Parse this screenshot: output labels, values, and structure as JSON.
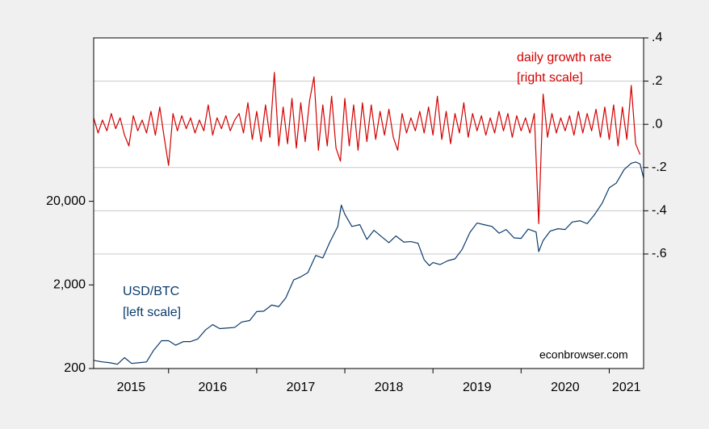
{
  "chart_data": {
    "type": "line",
    "annotations": [
      "[left scale]",
      "[right scale]",
      "econbrowser.com"
    ],
    "xlim": [
      2015.15,
      2021.39
    ],
    "xticks": [
      2015,
      2016,
      2017,
      2018,
      2019,
      2020,
      2021
    ],
    "ylog": true,
    "ylim": [
      200,
      1800000
    ],
    "yticks": [
      200,
      {
        "value": 2000,
        "label": "2,000"
      },
      {
        "value": 20000,
        "label": "20,000"
      }
    ],
    "y2lim": [
      -1.13,
      0.4
    ],
    "y2ticks": [
      {
        "value": 0.4,
        "label": ".4"
      },
      {
        "value": 0.2,
        "label": ".2"
      },
      {
        "value": 0,
        "label": ".0"
      },
      {
        "value": -0.2,
        "label": "-.2"
      },
      {
        "value": -0.4,
        "label": "-.4"
      },
      {
        "value": -0.6,
        "label": "-.6"
      }
    ],
    "grid": true,
    "series": [
      {
        "name": "USD/BTC",
        "color": "#0b3b6b",
        "axis": "y",
        "x": [
          2015.15,
          2015.25,
          2015.33,
          2015.42,
          2015.5,
          2015.58,
          2015.67,
          2015.75,
          2015.83,
          2015.92,
          2016.0,
          2016.08,
          2016.17,
          2016.25,
          2016.33,
          2016.42,
          2016.5,
          2016.58,
          2016.67,
          2016.75,
          2016.83,
          2016.92,
          2017.0,
          2017.08,
          2017.17,
          2017.25,
          2017.33,
          2017.42,
          2017.5,
          2017.58,
          2017.67,
          2017.75,
          2017.83,
          2017.92,
          2017.96,
          2018.0,
          2018.08,
          2018.17,
          2018.25,
          2018.33,
          2018.42,
          2018.5,
          2018.58,
          2018.67,
          2018.75,
          2018.83,
          2018.9,
          2018.96,
          2019.0,
          2019.08,
          2019.17,
          2019.25,
          2019.33,
          2019.42,
          2019.5,
          2019.58,
          2019.67,
          2019.75,
          2019.83,
          2019.92,
          2020.0,
          2020.08,
          2020.17,
          2020.2,
          2020.25,
          2020.33,
          2020.42,
          2020.5,
          2020.58,
          2020.67,
          2020.75,
          2020.83,
          2020.92,
          2021.0,
          2021.08,
          2021.17,
          2021.25,
          2021.3,
          2021.35,
          2021.39
        ],
        "values": [
          250,
          240,
          235,
          225,
          270,
          230,
          235,
          240,
          330,
          430,
          430,
          380,
          420,
          420,
          450,
          580,
          670,
          600,
          610,
          620,
          720,
          750,
          960,
          970,
          1150,
          1100,
          1400,
          2300,
          2500,
          2800,
          4500,
          4200,
          6500,
          10000,
          18000,
          14000,
          10000,
          10500,
          7000,
          9000,
          7500,
          6400,
          7700,
          6500,
          6600,
          6300,
          4000,
          3400,
          3700,
          3500,
          3900,
          4100,
          5300,
          8500,
          11000,
          10500,
          10000,
          8300,
          9200,
          7300,
          7200,
          9300,
          8600,
          5000,
          6800,
          8800,
          9400,
          9200,
          11300,
          11700,
          10800,
          13700,
          19000,
          29000,
          33000,
          48000,
          57000,
          59000,
          56000,
          38000
        ]
      },
      {
        "name": "daily growth rate",
        "color": "#d40000",
        "axis": "y2",
        "x": [
          2015.15,
          2015.2,
          2015.25,
          2015.3,
          2015.35,
          2015.4,
          2015.45,
          2015.5,
          2015.55,
          2015.6,
          2015.65,
          2015.7,
          2015.75,
          2015.8,
          2015.85,
          2015.9,
          2015.95,
          2016.0,
          2016.05,
          2016.1,
          2016.15,
          2016.2,
          2016.25,
          2016.3,
          2016.35,
          2016.4,
          2016.45,
          2016.5,
          2016.55,
          2016.6,
          2016.65,
          2016.7,
          2016.75,
          2016.8,
          2016.85,
          2016.9,
          2016.95,
          2017.0,
          2017.05,
          2017.1,
          2017.15,
          2017.2,
          2017.25,
          2017.3,
          2017.35,
          2017.4,
          2017.45,
          2017.5,
          2017.55,
          2017.6,
          2017.65,
          2017.7,
          2017.75,
          2017.8,
          2017.85,
          2017.9,
          2017.95,
          2018.0,
          2018.05,
          2018.1,
          2018.15,
          2018.2,
          2018.25,
          2018.3,
          2018.35,
          2018.4,
          2018.45,
          2018.5,
          2018.55,
          2018.6,
          2018.65,
          2018.7,
          2018.75,
          2018.8,
          2018.85,
          2018.9,
          2018.95,
          2019.0,
          2019.05,
          2019.1,
          2019.15,
          2019.2,
          2019.25,
          2019.3,
          2019.35,
          2019.4,
          2019.45,
          2019.5,
          2019.55,
          2019.6,
          2019.65,
          2019.7,
          2019.75,
          2019.8,
          2019.85,
          2019.9,
          2019.95,
          2020.0,
          2020.05,
          2020.1,
          2020.15,
          2020.2,
          2020.25,
          2020.3,
          2020.35,
          2020.4,
          2020.45,
          2020.5,
          2020.55,
          2020.6,
          2020.65,
          2020.7,
          2020.75,
          2020.8,
          2020.85,
          2020.9,
          2020.95,
          2021.0,
          2021.05,
          2021.1,
          2021.15,
          2021.2,
          2021.25,
          2021.3,
          2021.35
        ],
        "values": [
          0.03,
          -0.04,
          0.02,
          -0.03,
          0.05,
          -0.02,
          0.03,
          -0.05,
          -0.1,
          0.04,
          -0.03,
          0.02,
          -0.04,
          0.06,
          -0.05,
          0.08,
          -0.06,
          -0.19,
          0.05,
          -0.03,
          0.04,
          -0.02,
          0.03,
          -0.04,
          0.02,
          -0.03,
          0.09,
          -0.05,
          0.03,
          -0.02,
          0.04,
          -0.03,
          0.02,
          0.05,
          -0.04,
          0.1,
          -0.07,
          0.06,
          -0.08,
          0.09,
          -0.06,
          0.24,
          -0.1,
          0.08,
          -0.09,
          0.12,
          -0.11,
          0.1,
          -0.08,
          0.11,
          0.22,
          -0.12,
          0.09,
          -0.1,
          0.13,
          -0.11,
          -0.17,
          0.12,
          -0.1,
          0.09,
          -0.12,
          0.1,
          -0.08,
          0.09,
          -0.07,
          0.06,
          -0.05,
          0.07,
          -0.06,
          -0.12,
          0.05,
          -0.04,
          0.03,
          -0.03,
          0.06,
          -0.04,
          0.08,
          -0.05,
          0.13,
          -0.07,
          0.06,
          -0.09,
          0.05,
          -0.04,
          0.1,
          -0.06,
          0.05,
          -0.03,
          0.04,
          -0.05,
          0.03,
          -0.04,
          0.06,
          -0.03,
          0.05,
          -0.06,
          0.04,
          -0.03,
          0.03,
          -0.04,
          0.05,
          -0.46,
          0.14,
          -0.06,
          0.05,
          -0.04,
          0.03,
          -0.03,
          0.04,
          -0.05,
          0.06,
          -0.04,
          0.05,
          -0.03,
          0.07,
          -0.06,
          0.08,
          -0.07,
          0.09,
          -0.1,
          0.08,
          -0.07,
          0.18,
          -0.09,
          -0.14
        ]
      }
    ]
  }
}
